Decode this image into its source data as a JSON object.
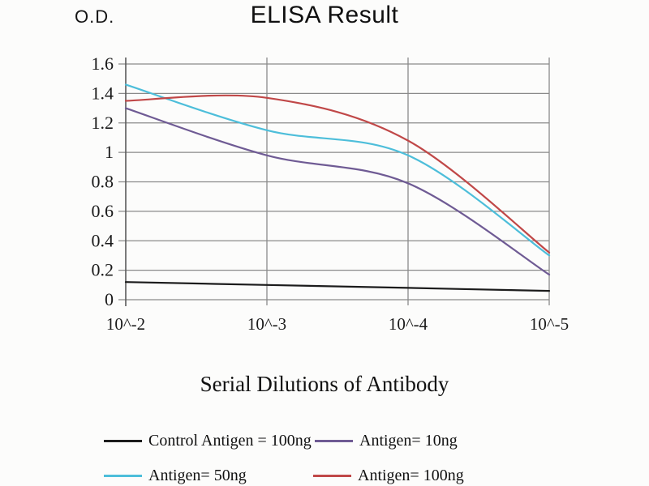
{
  "page": {
    "background": "#fcfcfb"
  },
  "chart_data": {
    "type": "line",
    "title": "ELISA Result",
    "y_axis_label": "O.D.",
    "x_axis_title": "Serial Dilutions of Antibody",
    "x_tick_labels": [
      "10^-2",
      "10^-3",
      "10^-4",
      "10^-5"
    ],
    "y_tick_labels": [
      "0",
      "0.2",
      "0.4",
      "0.6",
      "0.8",
      "1",
      "1.2",
      "1.4",
      "1.6"
    ],
    "ylim": [
      0,
      1.6
    ],
    "y_step": 0.2,
    "grid": true,
    "smooth": true,
    "legend_position": "bottom",
    "colors": {
      "gridline": "#8a8a8a",
      "axis": "#5a5a5a"
    },
    "series": [
      {
        "name": "Control Antigen = 100ng",
        "color": "#1c1c1c",
        "values": [
          0.12,
          0.1,
          0.08,
          0.06
        ]
      },
      {
        "name": "Antigen= 10ng",
        "color": "#6f5b94",
        "values": [
          1.3,
          0.98,
          0.79,
          0.17
        ]
      },
      {
        "name": "Antigen= 50ng",
        "color": "#4dbeda",
        "values": [
          1.46,
          1.15,
          0.98,
          0.3
        ]
      },
      {
        "name": "Antigen= 100ng",
        "color": "#c04848",
        "values": [
          1.35,
          1.37,
          1.08,
          0.32
        ]
      }
    ]
  }
}
